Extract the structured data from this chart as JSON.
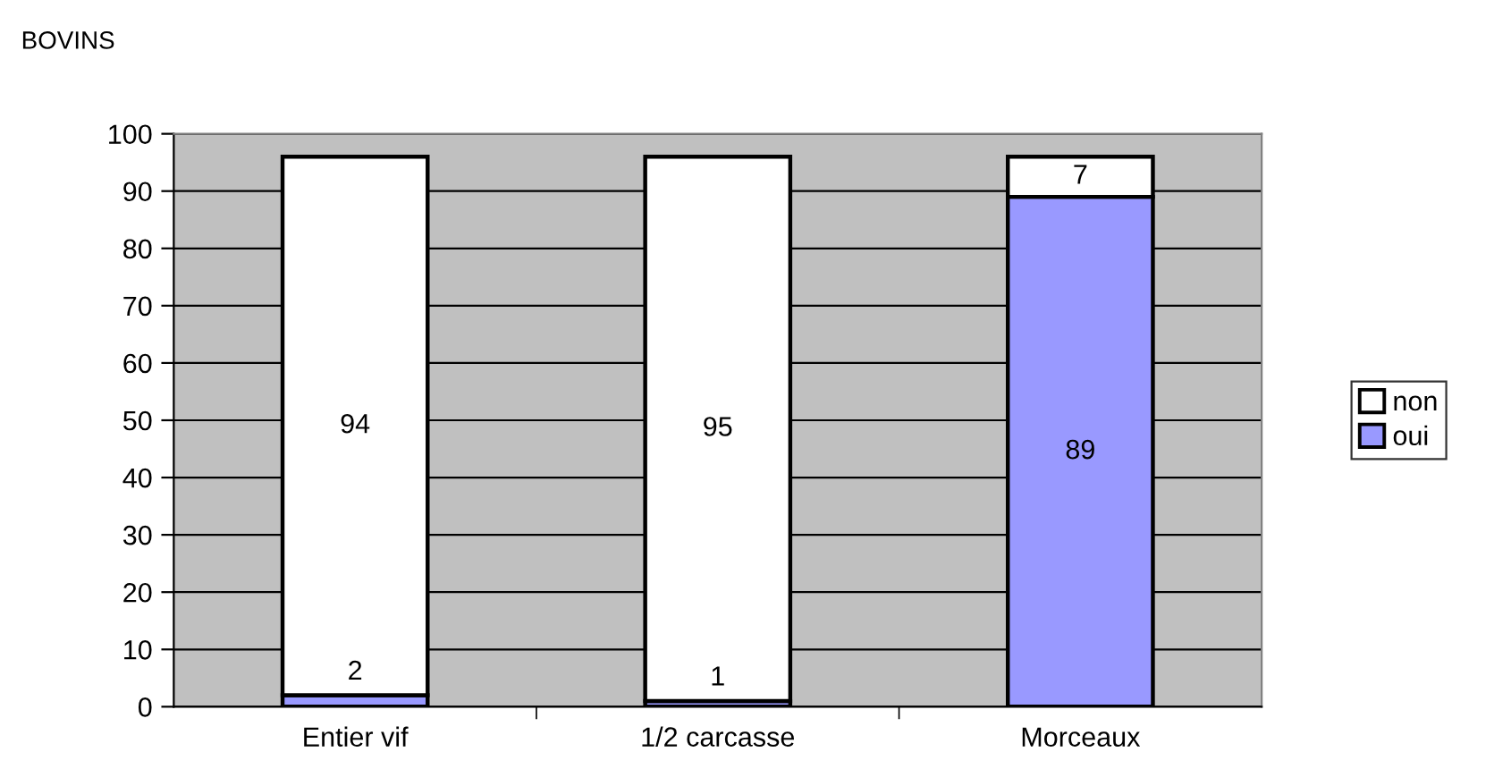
{
  "chart_data": {
    "type": "bar",
    "title": "BOVINS",
    "stacked": true,
    "categories": [
      "Entier vif",
      "1/2 carcasse",
      "Morceaux"
    ],
    "series": [
      {
        "name": "oui",
        "color": "#9999ff",
        "values": [
          2,
          1,
          89
        ]
      },
      {
        "name": "non",
        "color": "#ffffff",
        "values": [
          94,
          95,
          7
        ]
      }
    ],
    "ylim": [
      0,
      100
    ],
    "yticks": [
      0,
      10,
      20,
      30,
      40,
      50,
      60,
      70,
      80,
      90,
      100
    ],
    "grid": "y",
    "legend": "right",
    "data_labels": true
  }
}
